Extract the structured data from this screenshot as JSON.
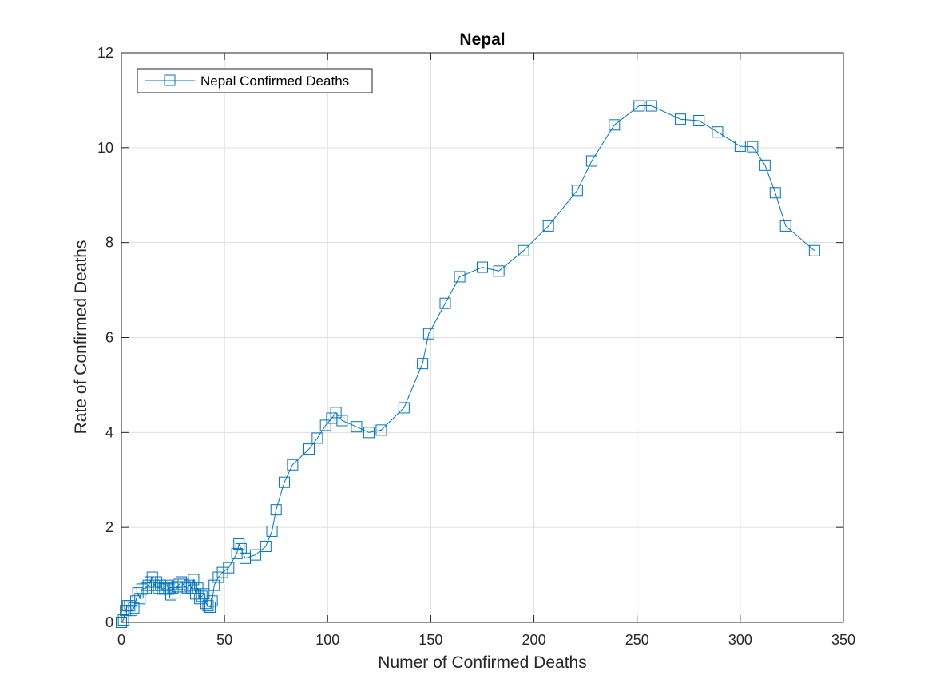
{
  "chart_data": {
    "type": "line",
    "title": "Nepal",
    "xlabel": "Numer of Confirmed Deaths",
    "ylabel": "Rate of Confirmed Deaths",
    "xlim": [
      0,
      350
    ],
    "ylim": [
      0,
      12
    ],
    "xticks": [
      0,
      50,
      100,
      150,
      200,
      250,
      300,
      350
    ],
    "yticks": [
      0,
      2,
      4,
      6,
      8,
      10,
      12
    ],
    "grid": true,
    "legend_position": "top-left",
    "series": [
      {
        "name": "Nepal Confirmed Deaths",
        "color": "#0072BD",
        "marker": "square",
        "x": [
          0,
          1,
          2,
          3,
          4,
          5,
          6,
          7,
          8,
          9,
          10,
          12,
          13,
          14,
          15,
          16,
          17,
          18,
          19,
          20,
          21,
          22,
          23,
          24,
          25,
          26,
          27,
          28,
          29,
          30,
          31,
          32,
          33,
          34,
          35,
          36,
          37,
          38,
          39,
          40,
          41,
          42,
          43,
          44,
          45,
          47,
          49,
          52,
          56,
          57,
          58,
          60,
          65,
          70,
          73,
          75,
          79,
          83,
          91,
          95,
          99,
          102,
          104,
          107,
          114,
          120,
          126,
          137,
          146,
          149,
          157,
          164,
          175,
          183,
          195,
          207,
          221,
          228,
          239,
          251,
          257,
          271,
          280,
          289,
          300,
          306,
          312,
          317,
          322,
          336
        ],
        "y": [
          0.0,
          0.05,
          0.25,
          0.35,
          0.35,
          0.25,
          0.3,
          0.45,
          0.62,
          0.5,
          0.7,
          0.72,
          0.78,
          0.85,
          0.95,
          0.78,
          0.85,
          0.72,
          0.78,
          0.7,
          0.72,
          0.78,
          0.7,
          0.58,
          0.72,
          0.62,
          0.75,
          0.8,
          0.85,
          0.8,
          0.75,
          0.72,
          0.78,
          0.72,
          0.9,
          0.6,
          0.72,
          0.5,
          0.55,
          0.6,
          0.4,
          0.35,
          0.32,
          0.45,
          0.78,
          0.95,
          1.05,
          1.15,
          1.45,
          1.65,
          1.55,
          1.35,
          1.42,
          1.6,
          1.92,
          2.37,
          2.95,
          3.32,
          3.65,
          3.88,
          4.15,
          4.3,
          4.42,
          4.25,
          4.12,
          4.0,
          4.05,
          4.52,
          5.45,
          6.08,
          6.72,
          7.28,
          7.48,
          7.4,
          7.83,
          8.35,
          9.1,
          9.72,
          10.48,
          10.88,
          10.88,
          10.6,
          10.57,
          10.33,
          10.03,
          10.02,
          9.63,
          9.05,
          8.35,
          7.83
        ]
      }
    ]
  }
}
